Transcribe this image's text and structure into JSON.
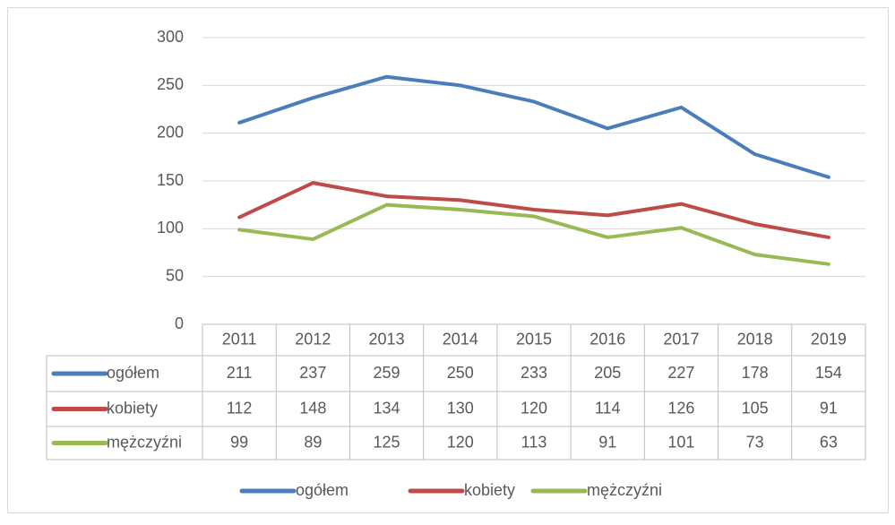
{
  "chart_data": {
    "type": "line",
    "categories": [
      "2011",
      "2012",
      "2013",
      "2014",
      "2015",
      "2016",
      "2017",
      "2018",
      "2019"
    ],
    "series": [
      {
        "name": "ogółem",
        "color": "#4a7ebb",
        "values": [
          211,
          237,
          259,
          250,
          233,
          205,
          227,
          178,
          154
        ]
      },
      {
        "name": "kobiety",
        "color": "#be4b48",
        "values": [
          112,
          148,
          134,
          130,
          120,
          114,
          126,
          105,
          91
        ]
      },
      {
        "name": "mężczyźni",
        "color": "#98b954",
        "values": [
          99,
          89,
          125,
          120,
          113,
          91,
          101,
          73,
          63
        ]
      }
    ],
    "ylim": [
      0,
      300
    ],
    "yticks": [
      0,
      50,
      100,
      150,
      200,
      250,
      300
    ],
    "grid": true,
    "legend": "bottom",
    "data_table": true
  }
}
